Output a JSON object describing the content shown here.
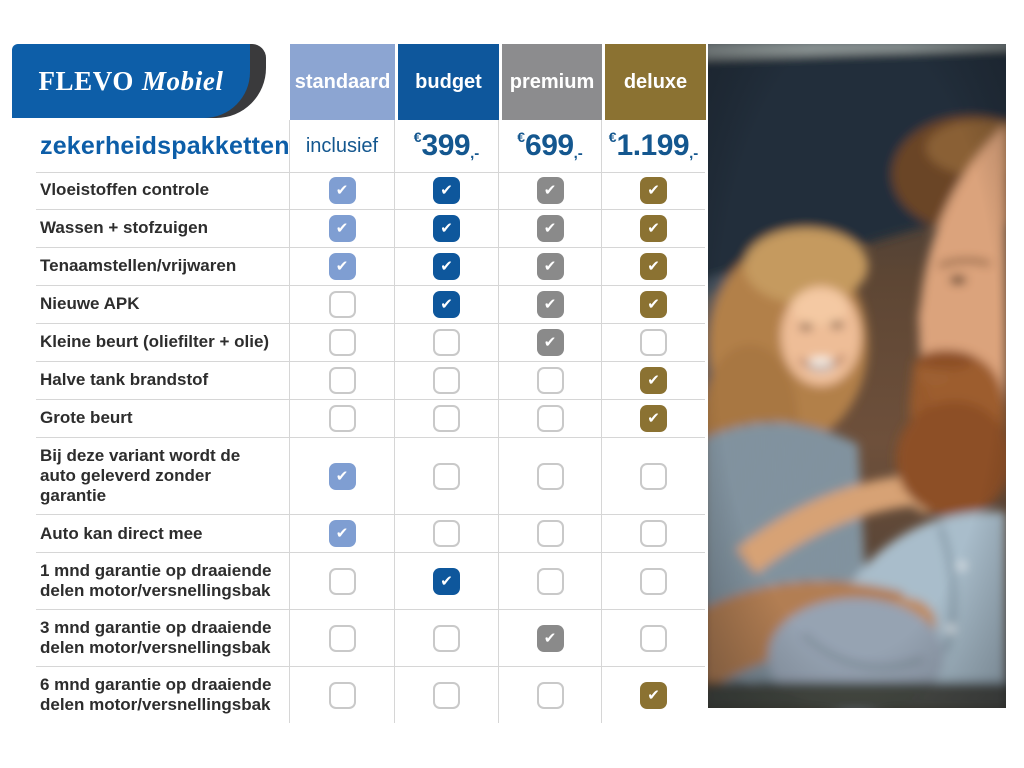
{
  "brand": {
    "name_primary": "FLEVO",
    "name_secondary": "Mobiel"
  },
  "title": "zekerheidspakketten",
  "icons": {
    "check": "✔"
  },
  "colors": {
    "brand_blue": "#0d5ea8",
    "logo_dark": "#3a3a3c",
    "price_blue": "#14578f",
    "grid_line": "#d6d6d6"
  },
  "table": {
    "columns": [
      {
        "id": "standaard",
        "label": "standaard",
        "price_text": "inclusief",
        "currency": "",
        "amount": "",
        "suffix": "",
        "header_color": "#8ca5d2",
        "check_color": "#7f9ed2"
      },
      {
        "id": "budget",
        "label": "budget",
        "price_text": "",
        "currency": "€",
        "amount": "399",
        "suffix": ",-",
        "header_color": "#0e579c",
        "check_color": "#0e579c"
      },
      {
        "id": "premium",
        "label": "premium",
        "price_text": "",
        "currency": "€",
        "amount": "699",
        "suffix": ",-",
        "header_color": "#8c8c8e",
        "check_color": "#8a8a8a"
      },
      {
        "id": "deluxe",
        "label": "deluxe",
        "price_text": "",
        "currency": "€",
        "amount": "1.199",
        "suffix": ",-",
        "header_color": "#8b7232",
        "check_color": "#8b7232"
      }
    ],
    "rows": [
      {
        "label": "Vloeistoffen controle",
        "checks": [
          true,
          true,
          true,
          true
        ]
      },
      {
        "label": "Wassen + stofzuigen",
        "checks": [
          true,
          true,
          true,
          true
        ]
      },
      {
        "label": "Tenaamstellen/vrijwaren",
        "checks": [
          true,
          true,
          true,
          true
        ]
      },
      {
        "label": "Nieuwe APK",
        "checks": [
          false,
          true,
          true,
          true
        ]
      },
      {
        "label": "Kleine beurt (oliefilter + olie)",
        "checks": [
          false,
          false,
          true,
          false
        ]
      },
      {
        "label": "Halve tank brandstof",
        "checks": [
          false,
          false,
          false,
          true
        ]
      },
      {
        "label": "Grote beurt",
        "checks": [
          false,
          false,
          false,
          true
        ]
      },
      {
        "label": "Bij deze variant wordt de auto geleverd zonder garantie",
        "checks": [
          true,
          false,
          false,
          false
        ]
      },
      {
        "label": "Auto kan direct mee",
        "checks": [
          true,
          false,
          false,
          false
        ]
      },
      {
        "label": "1 mnd garantie op draaiende delen motor/versnellingsbak",
        "checks": [
          false,
          true,
          false,
          false
        ]
      },
      {
        "label": "3 mnd garantie op draaiende delen motor/versnellingsbak",
        "checks": [
          false,
          false,
          true,
          false
        ]
      },
      {
        "label": "6 mnd garantie op draaiende delen motor/versnellingsbak",
        "checks": [
          false,
          false,
          false,
          true
        ]
      }
    ]
  },
  "photo": {
    "description": "Smiling couple sitting together in a car"
  }
}
